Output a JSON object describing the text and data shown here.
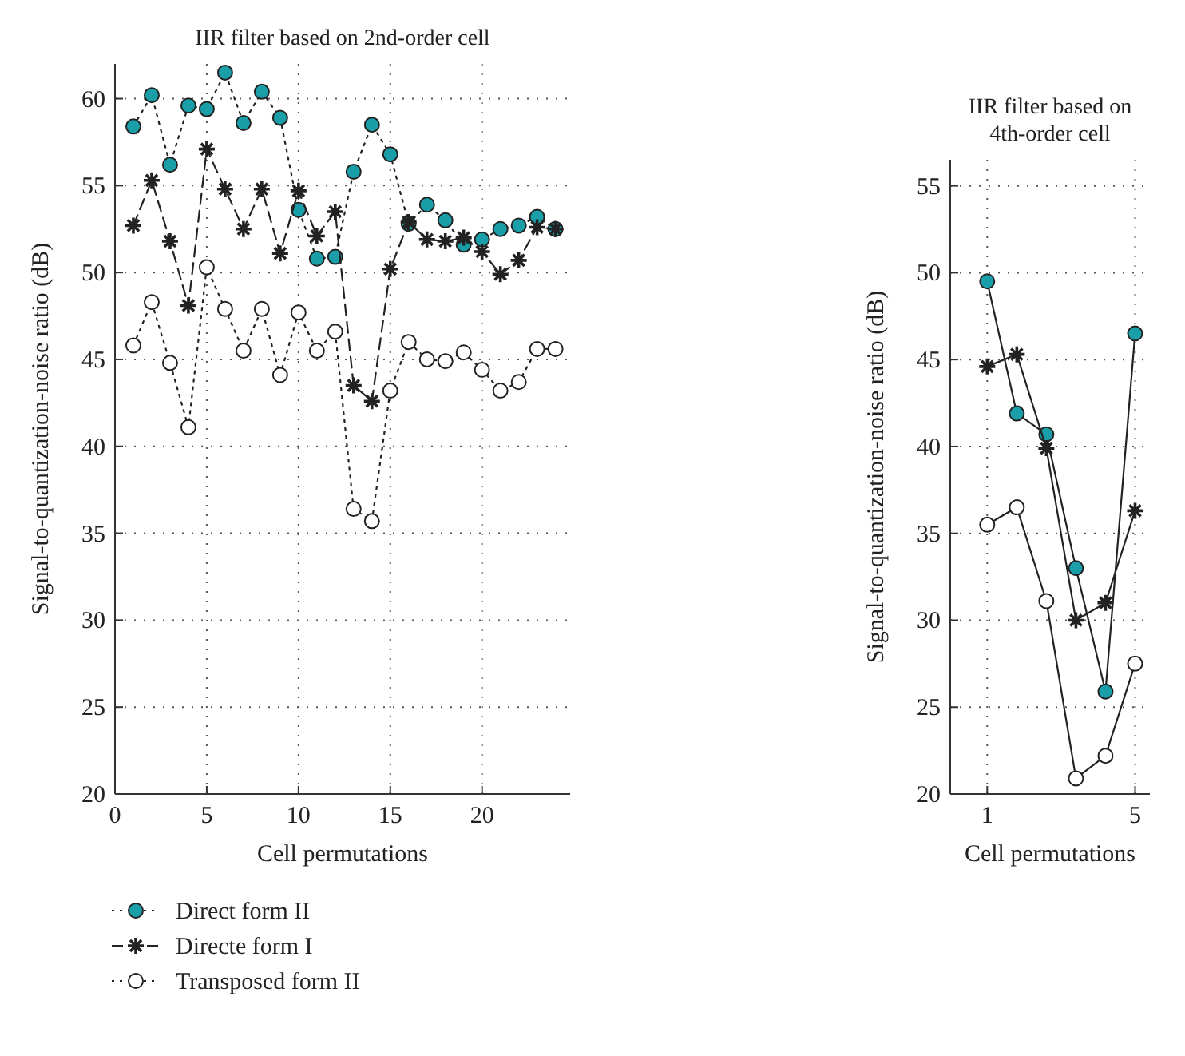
{
  "chart_data": [
    {
      "type": "line",
      "title": "IIR filter based on 2nd-order cell",
      "xlabel": "Cell permutations",
      "ylabel": "Signal-to-quantization-noise ratio (dB)",
      "x": [
        1,
        2,
        3,
        4,
        5,
        6,
        7,
        8,
        9,
        10,
        11,
        12,
        13,
        14,
        15,
        16,
        17,
        18,
        19,
        20,
        21,
        22,
        23,
        24
      ],
      "xlim": [
        0,
        24.8
      ],
      "xticks": [
        0,
        5,
        10,
        15,
        20
      ],
      "ylim": [
        20,
        62
      ],
      "yticks": [
        20,
        25,
        30,
        35,
        40,
        45,
        50,
        55,
        60
      ],
      "grid": true,
      "legend": "bottom",
      "series": [
        {
          "name": "Direct form II",
          "color": "#1a9fa8",
          "marker": "circle",
          "line_style": "dotted",
          "values": [
            58.4,
            60.2,
            56.2,
            59.6,
            59.4,
            61.5,
            58.6,
            60.4,
            58.9,
            53.6,
            50.8,
            50.9,
            55.8,
            58.5,
            56.8,
            52.8,
            53.9,
            53.0,
            51.6,
            51.9,
            52.5,
            52.7,
            53.2,
            52.5
          ]
        },
        {
          "name": "Directe form I",
          "color": "#222222",
          "marker": "cross",
          "line_style": "dashed",
          "values": [
            52.7,
            55.3,
            51.8,
            48.1,
            57.1,
            54.8,
            52.5,
            54.8,
            51.1,
            54.7,
            52.1,
            53.5,
            43.5,
            42.6,
            50.2,
            52.9,
            51.9,
            51.8,
            52.0,
            51.2,
            49.9,
            50.7,
            52.6,
            52.5
          ]
        },
        {
          "name": "Transposed form II",
          "color": "#ffffff",
          "marker": "circle",
          "line_style": "dotted",
          "values": [
            45.8,
            48.3,
            44.8,
            41.1,
            50.3,
            47.9,
            45.5,
            47.9,
            44.1,
            47.7,
            45.5,
            46.6,
            36.4,
            35.7,
            43.2,
            46.0,
            45.0,
            44.9,
            45.4,
            44.4,
            43.2,
            43.7,
            45.6,
            45.6
          ]
        }
      ]
    },
    {
      "type": "line",
      "title": "IIR filter based on 4th-order cell",
      "xlabel": "Cell permutations",
      "ylabel": "Signal-to-quantization-noise ratio (dB)",
      "x": [
        1,
        1.8,
        2.6,
        3.4,
        4.2,
        5
      ],
      "xlim": [
        0,
        5.4
      ],
      "xticks": [
        1,
        5
      ],
      "ylim": [
        20,
        56.5
      ],
      "yticks": [
        20,
        25,
        30,
        35,
        40,
        45,
        50,
        55
      ],
      "grid": true,
      "line_style": "solid",
      "series": [
        {
          "color": "#1a9fa8",
          "marker": "circle",
          "values": [
            49.5,
            41.9,
            40.7,
            33.0,
            25.9,
            46.5
          ]
        },
        {
          "color": "#222222",
          "marker": "cross",
          "values": [
            44.6,
            45.3,
            39.9,
            30.0,
            31.0,
            36.3
          ]
        },
        {
          "color": "#ffffff",
          "marker": "circle",
          "values": [
            35.5,
            36.5,
            31.1,
            20.9,
            22.2,
            27.5
          ]
        }
      ]
    }
  ]
}
